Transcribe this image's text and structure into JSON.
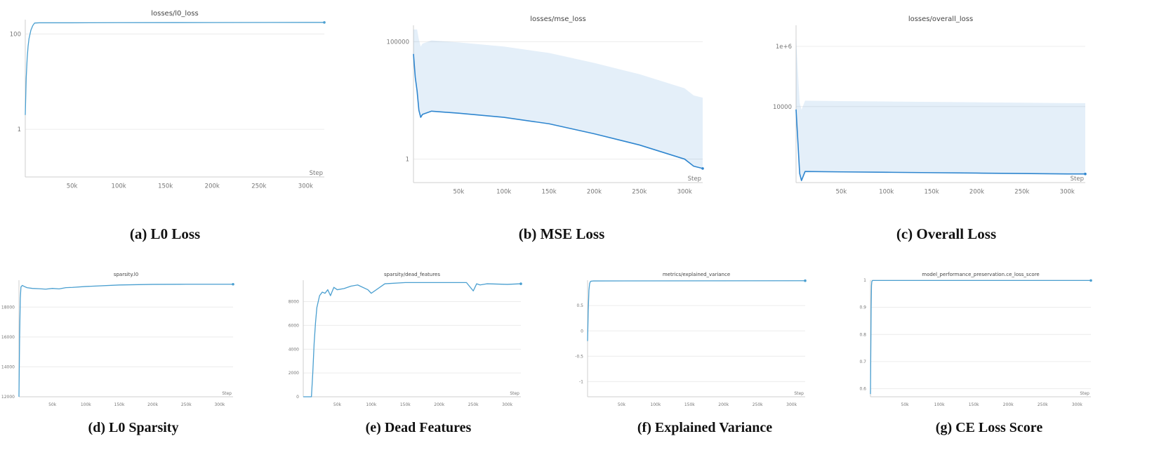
{
  "chart_data": [
    {
      "type": "line",
      "title": "losses/l0_loss",
      "caption": "(a) L0 Loss",
      "xlabel": "Step",
      "yscale": "log",
      "ylim": [
        0.1,
        200
      ],
      "xticks": [
        50000,
        100000,
        150000,
        200000,
        250000,
        300000
      ],
      "xtick_labels": [
        "50k",
        "100k",
        "150k",
        "200k",
        "250k",
        "300k"
      ],
      "yticks": [
        1,
        100
      ],
      "ytick_labels": [
        "1",
        "100"
      ],
      "series": [
        {
          "color": "#4a9fd0",
          "x": [
            0,
            1000,
            2000,
            3000,
            4000,
            6000,
            8000,
            10000,
            15000,
            50000,
            100000,
            200000,
            300000,
            320000
          ],
          "y": [
            2,
            12,
            30,
            55,
            80,
            120,
            150,
            170,
            172,
            172,
            173,
            174,
            175,
            175
          ]
        }
      ]
    },
    {
      "type": "line",
      "title": "losses/mse_loss",
      "caption": "(b) MSE Loss",
      "xlabel": "Step",
      "yscale": "log",
      "ylim": [
        0.1,
        500000
      ],
      "xticks": [
        50000,
        100000,
        150000,
        200000,
        250000,
        300000
      ],
      "xtick_labels": [
        "50k",
        "100k",
        "150k",
        "200k",
        "250k",
        "300k"
      ],
      "yticks": [
        1,
        100000
      ],
      "ytick_labels": [
        "1",
        "100000"
      ],
      "series": [
        {
          "color": "#2f86cf",
          "x": [
            0,
            2000,
            4000,
            6000,
            8000,
            10000,
            20000,
            50000,
            100000,
            150000,
            200000,
            250000,
            300000,
            310000,
            320000
          ],
          "y": [
            30000,
            3000,
            800,
            120,
            60,
            80,
            110,
            90,
            60,
            32,
            12,
            4,
            1,
            0.5,
            0.4
          ]
        }
      ]
    },
    {
      "type": "line",
      "title": "losses/overall_loss",
      "caption": "(c) Overall Loss",
      "xlabel": "Step",
      "yscale": "log",
      "ylim": [
        30,
        5000000
      ],
      "xticks": [
        50000,
        100000,
        150000,
        200000,
        250000,
        300000
      ],
      "xtick_labels": [
        "50k",
        "100k",
        "150k",
        "200k",
        "250k",
        "300k"
      ],
      "yticks": [
        10000,
        1000000
      ],
      "ytick_labels": [
        "10000",
        "1e+6"
      ],
      "series": [
        {
          "color": "#2f86cf",
          "x": [
            0,
            2000,
            4000,
            6000,
            10000,
            50000,
            100000,
            150000,
            200000,
            250000,
            300000,
            320000
          ],
          "y": [
            8000,
            700,
            60,
            35,
            70,
            68,
            66,
            64,
            62,
            60,
            58,
            58
          ]
        }
      ]
    },
    {
      "type": "line",
      "title": "sparsity.l0",
      "caption": "(d) L0 Sparsity",
      "xlabel": "Step",
      "yscale": "linear",
      "ylim": [
        12000,
        19800
      ],
      "xticks": [
        50000,
        100000,
        150000,
        200000,
        250000,
        300000
      ],
      "xtick_labels": [
        "50k",
        "100k",
        "150k",
        "200k",
        "250k",
        "300k"
      ],
      "yticks": [
        12000,
        14000,
        16000,
        18000
      ],
      "ytick_labels": [
        "12000",
        "14000",
        "16000",
        "18000"
      ],
      "series": [
        {
          "color": "#4a9fd0",
          "x": [
            0,
            1000,
            2000,
            3000,
            5000,
            8000,
            12000,
            20000,
            30000,
            40000,
            50000,
            60000,
            70000,
            80000,
            100000,
            150000,
            200000,
            250000,
            300000,
            320000
          ],
          "y": [
            12000,
            16000,
            18600,
            19350,
            19450,
            19380,
            19300,
            19250,
            19230,
            19200,
            19250,
            19220,
            19300,
            19320,
            19380,
            19480,
            19520,
            19530,
            19530,
            19530
          ]
        }
      ]
    },
    {
      "type": "line",
      "title": "sparsity/dead_features",
      "caption": "(e) Dead Features",
      "xlabel": "Step",
      "yscale": "linear",
      "ylim": [
        0,
        9800
      ],
      "xticks": [
        50000,
        100000,
        150000,
        200000,
        250000,
        300000
      ],
      "xtick_labels": [
        "50k",
        "100k",
        "150k",
        "200k",
        "250k",
        "300k"
      ],
      "yticks": [
        0,
        2000,
        4000,
        6000,
        8000
      ],
      "ytick_labels": [
        "0",
        "2000",
        "4000",
        "6000",
        "8000"
      ],
      "series": [
        {
          "color": "#4a9fd0",
          "x": [
            0,
            12000,
            14000,
            16000,
            18000,
            20000,
            22000,
            24000,
            28000,
            32000,
            36000,
            40000,
            45000,
            50000,
            60000,
            70000,
            80000,
            95000,
            100000,
            120000,
            150000,
            200000,
            240000,
            250000,
            255000,
            260000,
            270000,
            300000,
            320000
          ],
          "y": [
            0,
            0,
            2000,
            4500,
            6200,
            7500,
            8000,
            8500,
            8800,
            8700,
            9000,
            8500,
            9200,
            9000,
            9100,
            9300,
            9400,
            9000,
            8700,
            9500,
            9600,
            9600,
            9600,
            8900,
            9500,
            9400,
            9500,
            9450,
            9500
          ]
        }
      ]
    },
    {
      "type": "line",
      "title": "metrics/explained_variance",
      "caption": "(f) Explained Variance",
      "xlabel": "Step",
      "yscale": "linear",
      "ylim": [
        -1.3,
        1.0
      ],
      "xticks": [
        50000,
        100000,
        150000,
        200000,
        250000,
        300000
      ],
      "xtick_labels": [
        "50k",
        "100k",
        "150k",
        "200k",
        "250k",
        "300k"
      ],
      "yticks": [
        -1,
        -0.5,
        0,
        0.5
      ],
      "ytick_labels": [
        "-1",
        "-0.5",
        "0",
        "0.5"
      ],
      "series": [
        {
          "color": "#4a9fd0",
          "x": [
            0,
            1000,
            2000,
            3000,
            4000,
            5000,
            8000,
            320000
          ],
          "y": [
            -0.2,
            0.4,
            0.8,
            0.93,
            0.97,
            0.98,
            0.985,
            0.99
          ]
        }
      ]
    },
    {
      "type": "line",
      "title": "model_performance_preservation.ce_loss_score",
      "caption": "(g) CE Loss Score",
      "xlabel": "Step",
      "yscale": "linear",
      "ylim": [
        0.57,
        1.0
      ],
      "xticks": [
        50000,
        100000,
        150000,
        200000,
        250000,
        300000
      ],
      "xtick_labels": [
        "50k",
        "100k",
        "150k",
        "200k",
        "250k",
        "300k"
      ],
      "yticks": [
        0.6,
        0.7,
        0.8,
        0.9,
        1
      ],
      "ytick_labels": [
        "0.6",
        "0.7",
        "0.8",
        "0.9",
        "1"
      ],
      "series": [
        {
          "color": "#4a9fd0",
          "x": [
            0,
            1000,
            1500,
            2000,
            3000,
            320000
          ],
          "y": [
            0.58,
            0.9,
            0.98,
            0.995,
            0.999,
            0.999
          ]
        }
      ]
    }
  ]
}
